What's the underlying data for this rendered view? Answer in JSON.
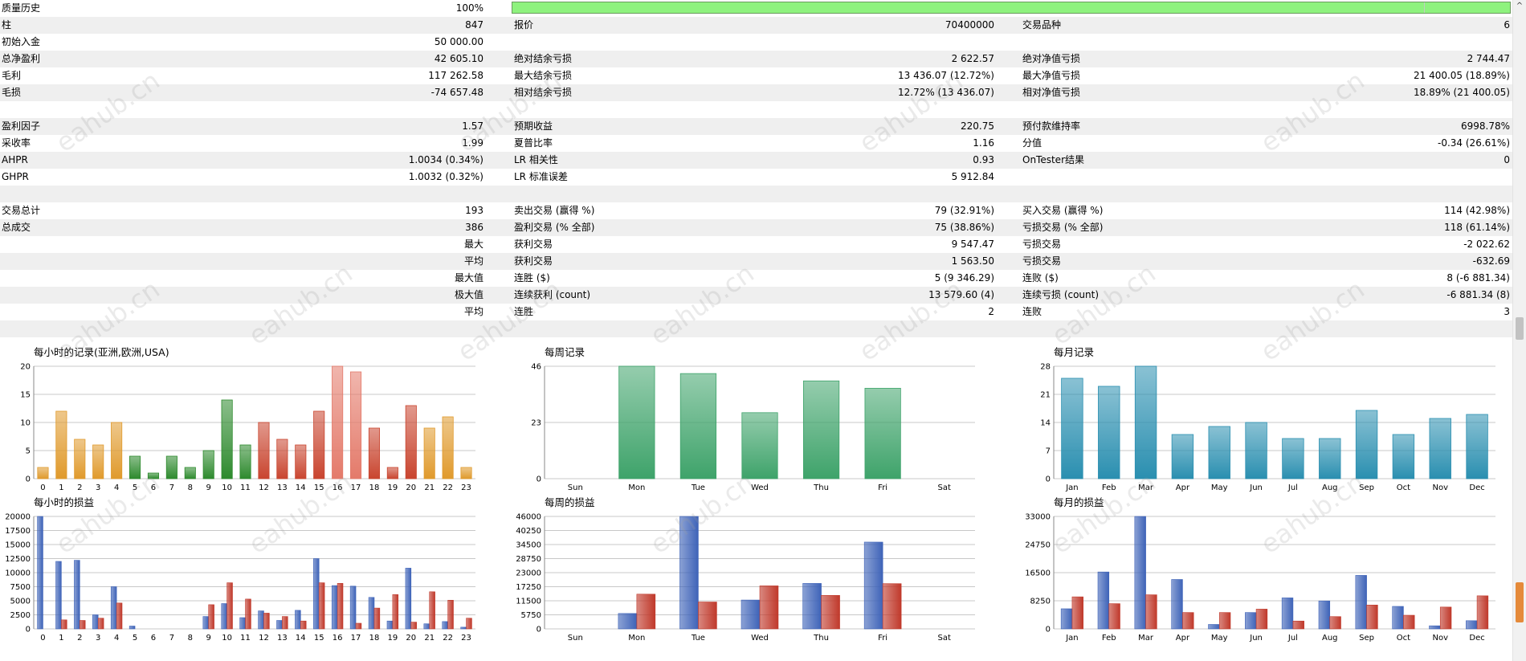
{
  "report": {
    "quality_label": "质量历史",
    "quality_value": "100%",
    "rows": [
      {
        "c1": {
          "l": "柱",
          "v": "847"
        },
        "c2": {
          "l": "报价",
          "v": "70400000"
        },
        "c3": {
          "l": "交易品种",
          "v": "6"
        }
      },
      {
        "c1": {
          "l": "初始入金",
          "v": "50 000.00"
        },
        "c2": {
          "l": "",
          "v": ""
        },
        "c3": {
          "l": "",
          "v": ""
        }
      },
      {
        "c1": {
          "l": "总净盈利",
          "v": "42 605.10"
        },
        "c2": {
          "l": "绝对结余亏损",
          "v": "2 622.57"
        },
        "c3": {
          "l": "绝对净值亏损",
          "v": "2 744.47"
        }
      },
      {
        "c1": {
          "l": "毛利",
          "v": "117 262.58"
        },
        "c2": {
          "l": "最大结余亏损",
          "v": "13 436.07 (12.72%)"
        },
        "c3": {
          "l": "最大净值亏损",
          "v": "21 400.05 (18.89%)"
        }
      },
      {
        "c1": {
          "l": "毛损",
          "v": "-74 657.48"
        },
        "c2": {
          "l": "相对结余亏损",
          "v": "12.72% (13 436.07)"
        },
        "c3": {
          "l": "相对净值亏损",
          "v": "18.89% (21 400.05)"
        }
      },
      {
        "c1": {
          "l": "",
          "v": ""
        },
        "c2": {
          "l": "",
          "v": ""
        },
        "c3": {
          "l": "",
          "v": ""
        }
      },
      {
        "c1": {
          "l": "盈利因子",
          "v": "1.57"
        },
        "c2": {
          "l": "预期收益",
          "v": "220.75"
        },
        "c3": {
          "l": "预付款维持率",
          "v": "6998.78%"
        }
      },
      {
        "c1": {
          "l": "采收率",
          "v": "1.99"
        },
        "c2": {
          "l": "夏普比率",
          "v": "1.16"
        },
        "c3": {
          "l": "分值",
          "v": "-0.34 (26.61%)"
        }
      },
      {
        "c1": {
          "l": "AHPR",
          "v": "1.0034 (0.34%)"
        },
        "c2": {
          "l": "LR 相关性",
          "v": "0.93"
        },
        "c3": {
          "l": "OnTester结果",
          "v": "0"
        }
      },
      {
        "c1": {
          "l": "GHPR",
          "v": "1.0032 (0.32%)"
        },
        "c2": {
          "l": "LR 标准误差",
          "v": "5 912.84"
        },
        "c3": {
          "l": "",
          "v": ""
        }
      },
      {
        "c1": {
          "l": "",
          "v": ""
        },
        "c2": {
          "l": "",
          "v": ""
        },
        "c3": {
          "l": "",
          "v": ""
        }
      },
      {
        "c1": {
          "l": "交易总计",
          "v": "193"
        },
        "c2": {
          "l": "卖出交易 (赢得 %)",
          "v": "79 (32.91%)"
        },
        "c3": {
          "l": "买入交易 (赢得 %)",
          "v": "114 (42.98%)"
        }
      },
      {
        "c1": {
          "l": "总成交",
          "v": "386"
        },
        "c2": {
          "l": "盈利交易 (% 全部)",
          "v": "75 (38.86%)"
        },
        "c3": {
          "l": "亏损交易 (% 全部)",
          "v": "118 (61.14%)"
        }
      },
      {
        "c1": {
          "l": "",
          "v": "最大"
        },
        "c2": {
          "l": "获利交易",
          "v": "9 547.47"
        },
        "c3": {
          "l": "亏损交易",
          "v": "-2 022.62"
        }
      },
      {
        "c1": {
          "l": "",
          "v": "平均"
        },
        "c2": {
          "l": "获利交易",
          "v": "1 563.50"
        },
        "c3": {
          "l": "亏损交易",
          "v": "-632.69"
        }
      },
      {
        "c1": {
          "l": "",
          "v": "最大值"
        },
        "c2": {
          "l": "连胜 ($)",
          "v": "5 (9 346.29)"
        },
        "c3": {
          "l": "连败 ($)",
          "v": "8 (-6 881.34)"
        }
      },
      {
        "c1": {
          "l": "",
          "v": "极大值"
        },
        "c2": {
          "l": "连续获利 (count)",
          "v": "13 579.60 (4)"
        },
        "c3": {
          "l": "连续亏损 (count)",
          "v": "-6 881.34 (8)"
        }
      },
      {
        "c1": {
          "l": "",
          "v": "平均"
        },
        "c2": {
          "l": "连胜",
          "v": "2"
        },
        "c3": {
          "l": "连败",
          "v": "3"
        }
      },
      {
        "c1": {
          "l": "",
          "v": ""
        },
        "c2": {
          "l": "",
          "v": ""
        },
        "c3": {
          "l": "",
          "v": ""
        }
      }
    ]
  },
  "watermark": "eahub.cn",
  "scrollbar": {
    "up_arrow": "^"
  },
  "chart_data": [
    {
      "id": "hourly-records",
      "type": "bar",
      "title": "每小时的记录(亚洲,欧洲,USA)",
      "categories": [
        "0",
        "1",
        "2",
        "3",
        "4",
        "5",
        "6",
        "7",
        "8",
        "9",
        "10",
        "11",
        "12",
        "13",
        "14",
        "15",
        "16",
        "17",
        "18",
        "19",
        "20",
        "21",
        "22",
        "23"
      ],
      "values": [
        2,
        12,
        7,
        6,
        10,
        4,
        1,
        4,
        2,
        5,
        14,
        6,
        10,
        7,
        6,
        12,
        20,
        19,
        9,
        2,
        13,
        9,
        11,
        2
      ],
      "ylim": [
        0,
        20
      ],
      "yticks": [
        "0",
        "5",
        "10",
        "15",
        "20"
      ],
      "colors": [
        "#e09a2c",
        "#e09a2c",
        "#e09a2c",
        "#e09a2c",
        "#e09a2c",
        "#2d8a2d",
        "#2d8a2d",
        "#2d8a2d",
        "#2d8a2d",
        "#2d8a2d",
        "#2d8a2d",
        "#2d8a2d",
        "#c9452f",
        "#c9452f",
        "#c9452f",
        "#c9452f",
        "#e47a6a",
        "#e47a6a",
        "#c9452f",
        "#c9452f",
        "#c9452f",
        "#e09a2c",
        "#e09a2c",
        "#e09a2c"
      ],
      "grid": true
    },
    {
      "id": "weekly-records",
      "type": "bar",
      "title": "每周记录",
      "categories": [
        "Sun",
        "Mon",
        "Tue",
        "Wed",
        "Thu",
        "Fri",
        "Sat"
      ],
      "values": [
        0,
        46,
        43,
        27,
        40,
        37,
        0
      ],
      "ylim": [
        0,
        46
      ],
      "yticks": [
        "0",
        "23",
        "46"
      ],
      "colors": [
        "#3ea36a",
        "#3ea36a",
        "#3ea36a",
        "#3ea36a",
        "#3ea36a",
        "#3ea36a",
        "#3ea36a"
      ],
      "grid": true
    },
    {
      "id": "monthly-records",
      "type": "bar",
      "title": "每月记录",
      "categories": [
        "Jan",
        "Feb",
        "Mar",
        "Apr",
        "May",
        "Jun",
        "Jul",
        "Aug",
        "Sep",
        "Oct",
        "Nov",
        "Dec"
      ],
      "values": [
        25,
        23,
        28,
        11,
        13,
        14,
        10,
        10,
        17,
        11,
        15,
        16
      ],
      "ylim": [
        0,
        28
      ],
      "yticks": [
        "0",
        "7",
        "14",
        "21",
        "28"
      ],
      "colors": [
        "#2a8fb0",
        "#2a8fb0",
        "#2a8fb0",
        "#2a8fb0",
        "#2a8fb0",
        "#2a8fb0",
        "#2a8fb0",
        "#2a8fb0",
        "#2a8fb0",
        "#2a8fb0",
        "#2a8fb0",
        "#2a8fb0"
      ],
      "grid": true
    },
    {
      "id": "hourly-pnl",
      "type": "bar",
      "title": "每小时的损益",
      "categories": [
        "0",
        "1",
        "2",
        "3",
        "4",
        "5",
        "6",
        "7",
        "8",
        "9",
        "10",
        "11",
        "12",
        "13",
        "14",
        "15",
        "16",
        "17",
        "18",
        "19",
        "20",
        "21",
        "22",
        "23"
      ],
      "series": [
        {
          "values": [
            20000,
            12000,
            12200,
            2500,
            7500,
            500,
            0,
            0,
            0,
            2200,
            4500,
            2000,
            3200,
            1500,
            3300,
            12500,
            7700,
            7600,
            5600,
            1400,
            10800,
            900,
            1300,
            300
          ],
          "color": "#3e63b8"
        },
        {
          "values": [
            0,
            1600,
            1500,
            1900,
            4600,
            0,
            0,
            0,
            0,
            4300,
            8200,
            5300,
            2800,
            2200,
            1400,
            8200,
            8100,
            1000,
            3700,
            6100,
            1200,
            6600,
            5100,
            1900
          ],
          "color": "#c0392b"
        }
      ],
      "ylim": [
        0,
        20000
      ],
      "yticks": [
        "0",
        "2500",
        "5000",
        "7500",
        "10000",
        "12500",
        "15000",
        "17500",
        "20000"
      ],
      "grid": true
    },
    {
      "id": "weekly-pnl",
      "type": "bar",
      "title": "每周的损益",
      "categories": [
        "Sun",
        "Mon",
        "Tue",
        "Wed",
        "Thu",
        "Fri",
        "Sat"
      ],
      "series": [
        {
          "values": [
            0,
            6300,
            46000,
            11800,
            18600,
            35500,
            0
          ],
          "color": "#3e63b8"
        },
        {
          "values": [
            0,
            14200,
            11000,
            17600,
            13700,
            18500,
            0
          ],
          "color": "#c0392b"
        }
      ],
      "ylim": [
        0,
        46000
      ],
      "yticks": [
        "0",
        "5750",
        "11500",
        "17250",
        "23000",
        "28750",
        "34500",
        "40250",
        "46000"
      ],
      "grid": true
    },
    {
      "id": "monthly-pnl",
      "type": "bar",
      "title": "每月的损益",
      "categories": [
        "Jan",
        "Feb",
        "Mar",
        "Apr",
        "May",
        "Jun",
        "Jul",
        "Aug",
        "Sep",
        "Oct",
        "Nov",
        "Dec"
      ],
      "series": [
        {
          "values": [
            5900,
            16700,
            33000,
            14500,
            1300,
            4800,
            9100,
            8200,
            15700,
            6600,
            900,
            2400
          ],
          "color": "#3e63b8"
        },
        {
          "values": [
            9400,
            7400,
            10000,
            4800,
            4800,
            5800,
            2300,
            3600,
            7000,
            4000,
            6400,
            9700
          ],
          "color": "#c0392b"
        }
      ],
      "ylim": [
        0,
        33000
      ],
      "yticks": [
        "0",
        "8250",
        "16500",
        "24750",
        "33000"
      ],
      "grid": true
    }
  ]
}
